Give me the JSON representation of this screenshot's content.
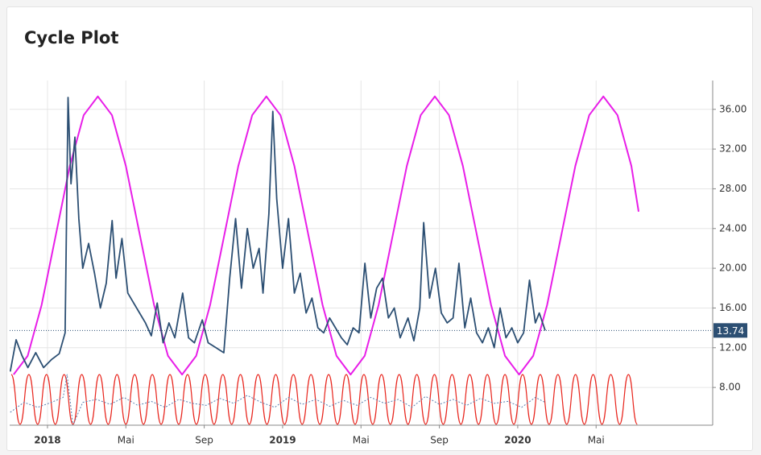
{
  "chart_data": {
    "type": "line",
    "title": "Cycle Plot",
    "xlim": [
      -1.93,
      33.95
    ],
    "xticks": [
      {
        "value": 0,
        "label": "2018"
      },
      {
        "value": 4,
        "label": "Mai"
      },
      {
        "value": 8,
        "label": "Sep"
      },
      {
        "value": 12,
        "label": "2019"
      },
      {
        "value": 16,
        "label": "Mai"
      },
      {
        "value": 20,
        "label": "Sep"
      },
      {
        "value": 24,
        "label": "2020"
      },
      {
        "value": 28,
        "label": "Mai"
      }
    ],
    "ylim": [
      4.2,
      38.9
    ],
    "yticks": [
      {
        "value": 8,
        "label": "8.00"
      },
      {
        "value": 12,
        "label": "12.00"
      },
      {
        "value": 16,
        "label": "16.00"
      },
      {
        "value": 20,
        "label": "20.00"
      },
      {
        "value": 24,
        "label": "24.00"
      },
      {
        "value": 28,
        "label": "28.00"
      },
      {
        "value": 32,
        "label": "32.00"
      },
      {
        "value": 36,
        "label": "36.00"
      }
    ],
    "grid": true,
    "last_value": 13.74,
    "last_value_color": "#2c4f73",
    "series": [
      {
        "color": "#2c4f73",
        "width": 1.8,
        "dashed": false,
        "smooth": false,
        "x": [
          -1.9,
          -1.6,
          -1.3,
          -1.0,
          -0.6,
          -0.2,
          0.2,
          0.6,
          0.9,
          1.05,
          1.2,
          1.4,
          1.6,
          1.8,
          2.1,
          2.4,
          2.7,
          3.0,
          3.3,
          3.5,
          3.8,
          4.1,
          4.4,
          4.7,
          5.0,
          5.3,
          5.6,
          5.9,
          6.2,
          6.5,
          6.9,
          7.2,
          7.5,
          7.9,
          8.2,
          8.6,
          9.0,
          9.3,
          9.6,
          9.9,
          10.2,
          10.5,
          10.8,
          11.0,
          11.3,
          11.5,
          11.7,
          12.0,
          12.3,
          12.6,
          12.9,
          13.2,
          13.5,
          13.8,
          14.1,
          14.4,
          14.7,
          15.0,
          15.3,
          15.6,
          15.9,
          16.2,
          16.5,
          16.8,
          17.1,
          17.4,
          17.7,
          18.0,
          18.4,
          18.7,
          19.0,
          19.2,
          19.5,
          19.8,
          20.1,
          20.4,
          20.7,
          21.0,
          21.3,
          21.6,
          21.9,
          22.2,
          22.5,
          22.8,
          23.1,
          23.4,
          23.7,
          24.0,
          24.3,
          24.6,
          24.9,
          25.1,
          25.4
        ],
        "values": [
          9.6,
          12.8,
          11.2,
          10.0,
          11.5,
          10.0,
          10.8,
          11.4,
          13.5,
          37.2,
          28.5,
          33.2,
          25,
          20,
          22.5,
          19.5,
          16,
          18.5,
          24.8,
          19,
          23,
          17.5,
          16.5,
          15.5,
          14.5,
          13.2,
          16.5,
          12.5,
          14.5,
          13.0,
          17.5,
          13,
          12.5,
          14.8,
          12.5,
          12,
          11.5,
          19,
          25,
          18,
          24,
          20,
          22,
          17.5,
          25.5,
          35.8,
          27,
          20,
          25,
          17.5,
          19.5,
          15.5,
          17,
          14,
          13.5,
          15,
          14,
          13,
          12.3,
          14,
          13.5,
          20.5,
          15,
          18,
          19,
          15,
          16,
          13,
          15,
          12.7,
          16,
          24.6,
          17,
          20,
          15.5,
          14.5,
          15,
          20.5,
          14,
          17,
          13.5,
          12.5,
          14,
          12.0,
          16,
          13,
          14,
          12.5,
          13.5,
          18.8,
          14.5,
          15.5,
          13.74
        ]
      },
      {
        "color": "#e81ee8",
        "width": 2,
        "dashed": false,
        "smooth": false,
        "x": [
          -1.73,
          -1.01,
          -0.3,
          0.42,
          1.14,
          1.85,
          2.57,
          3.29,
          4.0,
          4.72,
          5.44,
          6.15,
          6.87,
          7.59,
          8.3,
          9.02,
          9.74,
          10.45,
          11.17,
          11.89,
          12.6,
          13.32,
          14.04,
          14.75,
          15.47,
          16.19,
          16.9,
          17.62,
          18.34,
          19.05,
          19.77,
          20.49,
          21.2,
          21.92,
          22.64,
          23.35,
          24.07,
          24.79,
          25.5,
          26.22,
          26.94,
          27.65,
          28.37,
          29.09,
          29.8,
          30.17
        ],
        "values": [
          9.3,
          11.18,
          16.3,
          23.3,
          30.3,
          35.42,
          37.3,
          35.42,
          30.3,
          23.3,
          16.3,
          11.18,
          9.3,
          11.18,
          16.3,
          23.3,
          30.3,
          35.42,
          37.3,
          35.42,
          30.3,
          23.3,
          16.3,
          11.18,
          9.3,
          11.18,
          16.3,
          23.3,
          30.3,
          35.42,
          37.3,
          35.42,
          30.3,
          23.3,
          16.3,
          11.18,
          9.3,
          11.18,
          16.3,
          23.3,
          30.3,
          35.42,
          37.3,
          35.42,
          30.3,
          25.7
        ]
      },
      {
        "color": "#e8261e",
        "width": 1.2,
        "dashed": false,
        "smooth": true,
        "x": [
          -1.85,
          -1.4,
          -0.95,
          -0.5,
          -0.05,
          0.4,
          0.85,
          1.3,
          1.75,
          2.2,
          2.65,
          3.1,
          3.55,
          4.0,
          4.45,
          4.9,
          5.35,
          5.8,
          6.25,
          6.7,
          7.15,
          7.6,
          8.05,
          8.5,
          8.95,
          9.4,
          9.85,
          10.3,
          10.75,
          11.2,
          11.65,
          12.1,
          12.55,
          13.0,
          13.45,
          13.9,
          14.35,
          14.8,
          15.25,
          15.7,
          16.15,
          16.6,
          17.05,
          17.5,
          17.95,
          18.4,
          18.85,
          19.3,
          19.75,
          20.2,
          20.65,
          21.1,
          21.55,
          22.0,
          22.45,
          22.9,
          23.35,
          23.8,
          24.25,
          24.7,
          25.15,
          25.6,
          26.05,
          26.5,
          26.95,
          27.4,
          27.85,
          28.3,
          28.75,
          29.2,
          29.65,
          30.1
        ],
        "values": [
          9.3,
          4.3,
          9.3,
          4.3,
          9.3,
          4.3,
          9.3,
          4.3,
          9.3,
          4.3,
          9.3,
          4.3,
          9.3,
          4.3,
          9.3,
          4.3,
          9.3,
          4.3,
          9.3,
          4.3,
          9.3,
          4.3,
          9.3,
          4.3,
          9.3,
          4.3,
          9.3,
          4.3,
          9.3,
          4.3,
          9.3,
          4.3,
          9.3,
          4.3,
          9.3,
          4.3,
          9.3,
          4.3,
          9.3,
          4.3,
          9.3,
          4.3,
          9.3,
          4.3,
          9.3,
          4.3,
          9.3,
          4.3,
          9.3,
          4.3,
          9.3,
          4.3,
          9.3,
          4.3,
          9.3,
          4.3,
          9.3,
          4.3,
          9.3,
          4.3,
          9.3,
          4.3,
          9.3,
          4.3,
          9.3,
          4.3,
          9.3,
          4.3,
          9.3,
          4.3,
          9.3,
          4.3
        ]
      },
      {
        "color": "#5a7fb0",
        "width": 1,
        "dashed": true,
        "smooth": false,
        "x": [
          -1.9,
          -1.2,
          -0.5,
          0.2,
          0.8,
          1.0,
          1.3,
          1.8,
          2.5,
          3.2,
          3.9,
          4.6,
          5.3,
          6.0,
          6.7,
          7.4,
          8.1,
          8.8,
          9.5,
          10.2,
          10.9,
          11.6,
          12.3,
          13.0,
          13.7,
          14.4,
          15.1,
          15.8,
          16.5,
          17.2,
          17.9,
          18.6,
          19.3,
          20.0,
          20.7,
          21.4,
          22.1,
          22.8,
          23.5,
          24.2,
          24.9,
          25.4
        ],
        "values": [
          5.5,
          6.5,
          6.0,
          6.5,
          7.0,
          9.3,
          4.2,
          6.5,
          6.8,
          6.3,
          7.0,
          6.2,
          6.6,
          6.0,
          6.8,
          6.4,
          6.2,
          6.9,
          6.4,
          7.2,
          6.5,
          6.0,
          7.0,
          6.3,
          6.8,
          6.1,
          6.7,
          6.2,
          7.0,
          6.4,
          6.8,
          6.0,
          7.1,
          6.3,
          6.8,
          6.2,
          6.9,
          6.4,
          6.6,
          6.0,
          7.0,
          6.5
        ]
      }
    ]
  }
}
